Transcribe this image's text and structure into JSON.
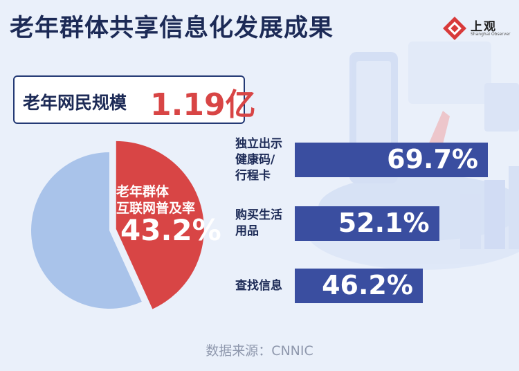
{
  "title": "老年群体共享信息化发展成果",
  "logo": {
    "name": "上观",
    "subtitle": "Shanghai Observer"
  },
  "headline": {
    "label": "老年网民规模",
    "value": "1.19亿"
  },
  "colors": {
    "pie_highlight": "#d84545",
    "pie_rest": "#a9c3ea",
    "bar": "#3a4ea0",
    "title": "#1c2a56"
  },
  "chart_data": [
    {
      "type": "pie",
      "slices": [
        {
          "label": "老年群体互联网普及率",
          "label_lines": [
            "老年群体",
            "互联网普及率"
          ],
          "value": 43.2,
          "display": "43.2%"
        },
        {
          "label": "",
          "value": 56.8
        }
      ]
    },
    {
      "type": "bar",
      "orientation": "horizontal",
      "categories": [
        "独立出示健康码/行程卡",
        "购买生活用品",
        "查找信息"
      ],
      "category_lines": [
        [
          "独立出示",
          "健康码/",
          "行程卡"
        ],
        [
          "购买生活",
          "用品"
        ],
        [
          "查找信息"
        ]
      ],
      "values": [
        69.7,
        52.1,
        46.2
      ],
      "value_labels": [
        "69.7%",
        "52.1%",
        "46.2%"
      ],
      "xlim": [
        0,
        100
      ]
    }
  ],
  "source": "数据来源：CNNIC"
}
